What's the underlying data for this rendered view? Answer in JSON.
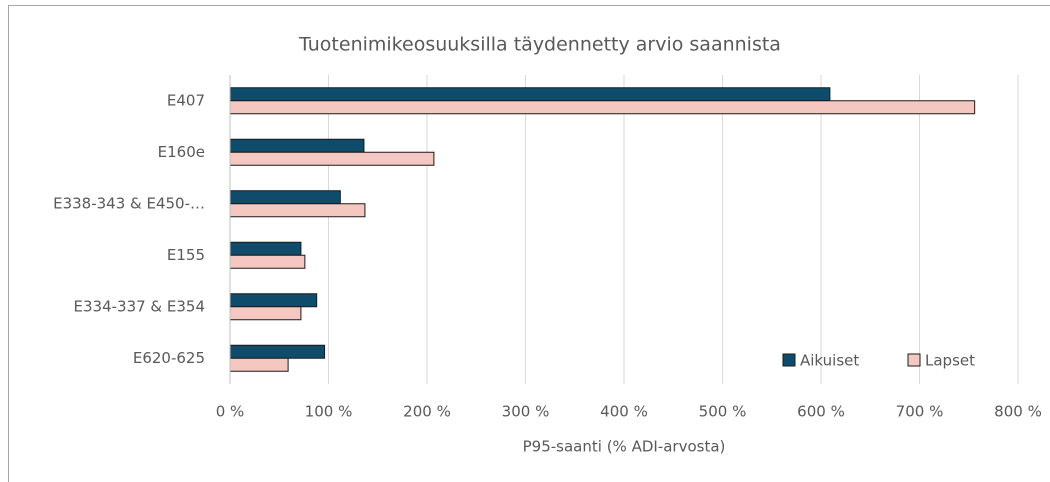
{
  "chart_data": {
    "type": "hbar",
    "title": "Tuotenimikeosuuksilla täydennetty arvio saannista",
    "categories": [
      "E407",
      "E160e",
      "E338-343 & E450-…",
      "E155",
      "E334-337 & E354",
      "E620-625"
    ],
    "series": [
      {
        "name": "Aikuiset",
        "color": "#0f4c6b",
        "values": [
          609,
          136,
          112,
          72,
          88,
          96
        ]
      },
      {
        "name": "Lapset",
        "color": "#f4c7c0",
        "values": [
          756,
          207,
          137,
          76,
          72,
          59
        ]
      }
    ],
    "xlim": [
      0,
      800
    ],
    "xticks": [
      {
        "value": 0,
        "label": "0 %"
      },
      {
        "value": 100,
        "label": "100 %"
      },
      {
        "value": 200,
        "label": "200 %"
      },
      {
        "value": 300,
        "label": "300 %"
      },
      {
        "value": 400,
        "label": "400 %"
      },
      {
        "value": 500,
        "label": "500 %"
      },
      {
        "value": 600,
        "label": "600 %"
      },
      {
        "value": 700,
        "label": "700 %"
      },
      {
        "value": 800,
        "label": "800 %"
      }
    ],
    "xlabel": "P95-saanti (% ADI-arvosta)",
    "grid": true,
    "legend": "lower right"
  }
}
